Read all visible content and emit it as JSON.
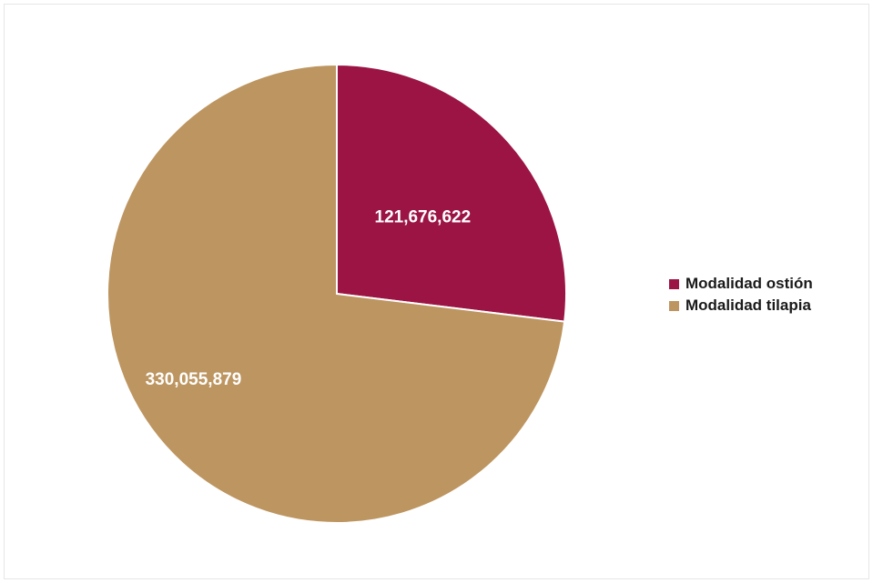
{
  "chart_data": {
    "type": "pie",
    "slices": [
      {
        "name": "Modalidad ostión",
        "value": 121676622,
        "label": "121,676,622",
        "color": "#9b1444"
      },
      {
        "name": "Modalidad tilapia",
        "value": 330055879,
        "label": "330,055,879",
        "color": "#bd9560"
      }
    ],
    "start_angle_deg": 0,
    "direction": "clockwise",
    "legend_position": "right"
  }
}
